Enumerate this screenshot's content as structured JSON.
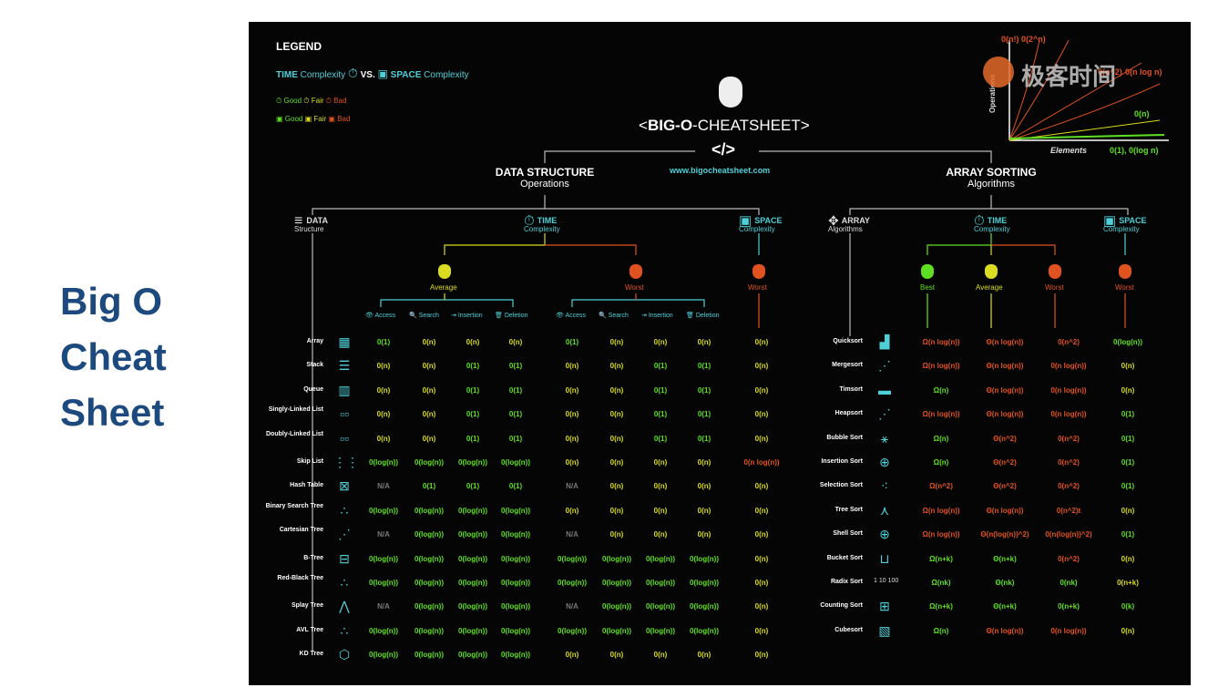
{
  "slide_title": [
    "Big O",
    "Cheat",
    "Sheet"
  ],
  "legend": {
    "title": "LEGEND",
    "time_word": "TIME",
    "complexity_word": "Complexity",
    "vs": "VS.",
    "space_word": "SPACE",
    "good": "Good",
    "fair": "Fair",
    "bad": "Bad"
  },
  "header": {
    "title_prefix": "<",
    "title_bold": "BIG-O",
    "title_rest": "-CHEATSHEET>",
    "code_glyph": "</>",
    "url": "www.bigocheatsheet.com"
  },
  "graph": {
    "labels": [
      "0(n!)",
      "0(2^n)",
      "0(n^2)",
      "0(n log n)",
      "0(n)",
      "0(1), 0(log n)"
    ],
    "x_label": "Elements",
    "y_label": "Operations"
  },
  "watermark": "极客时间",
  "sections": {
    "ds_title": "DATA STRUCTURE",
    "ds_sub": "Operations",
    "sort_title": "ARRAY SORTING",
    "sort_sub": "Algorithms",
    "data_structure": [
      "DATA",
      "Structure"
    ],
    "time_complexity": [
      "TIME",
      "Complexity"
    ],
    "space_complexity": [
      "SPACE",
      "Complexity"
    ],
    "array_algorithms": [
      "ARRAY",
      "Algorithms"
    ],
    "average": "Average",
    "worst": "Worst",
    "best": "Best",
    "ops": [
      "Access",
      "Search",
      "Insertion",
      "Deletion"
    ]
  },
  "ds_rows": [
    {
      "name": "Array",
      "avg": [
        "0(1)",
        "0(n)",
        "0(n)",
        "0(n)"
      ],
      "worst": [
        "0(1)",
        "0(n)",
        "0(n)",
        "0(n)"
      ],
      "space": "0(n)"
    },
    {
      "name": "Stack",
      "avg": [
        "0(n)",
        "0(n)",
        "0(1)",
        "0(1)"
      ],
      "worst": [
        "0(n)",
        "0(n)",
        "0(1)",
        "0(1)"
      ],
      "space": "0(n)"
    },
    {
      "name": "Queue",
      "avg": [
        "0(n)",
        "0(n)",
        "0(1)",
        "0(1)"
      ],
      "worst": [
        "0(n)",
        "0(n)",
        "0(1)",
        "0(1)"
      ],
      "space": "0(n)"
    },
    {
      "name": "Singly-Linked List",
      "avg": [
        "0(n)",
        "0(n)",
        "0(1)",
        "0(1)"
      ],
      "worst": [
        "0(n)",
        "0(n)",
        "0(1)",
        "0(1)"
      ],
      "space": "0(n)"
    },
    {
      "name": "Doubly-Linked List",
      "avg": [
        "0(n)",
        "0(n)",
        "0(1)",
        "0(1)"
      ],
      "worst": [
        "0(n)",
        "0(n)",
        "0(1)",
        "0(1)"
      ],
      "space": "0(n)"
    },
    {
      "name": "Skip List",
      "avg": [
        "0(log(n))",
        "0(log(n))",
        "0(log(n))",
        "0(log(n))"
      ],
      "worst": [
        "0(n)",
        "0(n)",
        "0(n)",
        "0(n)"
      ],
      "space": "0(n log(n))"
    },
    {
      "name": "Hash Table",
      "avg": [
        "N/A",
        "0(1)",
        "0(1)",
        "0(1)"
      ],
      "worst": [
        "N/A",
        "0(n)",
        "0(n)",
        "0(n)"
      ],
      "space": "0(n)"
    },
    {
      "name": "Binary Search Tree",
      "avg": [
        "0(log(n))",
        "0(log(n))",
        "0(log(n))",
        "0(log(n))"
      ],
      "worst": [
        "0(n)",
        "0(n)",
        "0(n)",
        "0(n)"
      ],
      "space": "0(n)"
    },
    {
      "name": "Cartesian Tree",
      "avg": [
        "N/A",
        "0(log(n))",
        "0(log(n))",
        "0(log(n))"
      ],
      "worst": [
        "N/A",
        "0(n)",
        "0(n)",
        "0(n)"
      ],
      "space": "0(n)"
    },
    {
      "name": "B-Tree",
      "avg": [
        "0(log(n))",
        "0(log(n))",
        "0(log(n))",
        "0(log(n))"
      ],
      "worst": [
        "0(log(n))",
        "0(log(n))",
        "0(log(n))",
        "0(log(n))"
      ],
      "space": "0(n)"
    },
    {
      "name": "Red-Black Tree",
      "avg": [
        "0(log(n))",
        "0(log(n))",
        "0(log(n))",
        "0(log(n))"
      ],
      "worst": [
        "0(log(n))",
        "0(log(n))",
        "0(log(n))",
        "0(log(n))"
      ],
      "space": "0(n)"
    },
    {
      "name": "Splay Tree",
      "avg": [
        "N/A",
        "0(log(n))",
        "0(log(n))",
        "0(log(n))"
      ],
      "worst": [
        "N/A",
        "0(log(n))",
        "0(log(n))",
        "0(log(n))"
      ],
      "space": "0(n)"
    },
    {
      "name": "AVL Tree",
      "avg": [
        "0(log(n))",
        "0(log(n))",
        "0(log(n))",
        "0(log(n))"
      ],
      "worst": [
        "0(log(n))",
        "0(log(n))",
        "0(log(n))",
        "0(log(n))"
      ],
      "space": "0(n)"
    },
    {
      "name": "KD Tree",
      "avg": [
        "0(log(n))",
        "0(log(n))",
        "0(log(n))",
        "0(log(n))"
      ],
      "worst": [
        "0(n)",
        "0(n)",
        "0(n)",
        "0(n)"
      ],
      "space": "0(n)"
    }
  ],
  "sort_rows": [
    {
      "name": "Quicksort",
      "best": "Ω(n log(n))",
      "avg": "Θ(n log(n))",
      "worst": "0(n^2)",
      "space": "0(log(n))"
    },
    {
      "name": "Mergesort",
      "best": "Ω(n log(n))",
      "avg": "Θ(n log(n))",
      "worst": "0(n log(n))",
      "space": "0(n)"
    },
    {
      "name": "Timsort",
      "best": "Ω(n)",
      "avg": "Θ(n log(n))",
      "worst": "0(n log(n))",
      "space": "0(n)"
    },
    {
      "name": "Heapsort",
      "best": "Ω(n log(n))",
      "avg": "Θ(n log(n))",
      "worst": "0(n log(n))",
      "space": "0(1)"
    },
    {
      "name": "Bubble Sort",
      "best": "Ω(n)",
      "avg": "Θ(n^2)",
      "worst": "0(n^2)",
      "space": "0(1)"
    },
    {
      "name": "Insertion Sort",
      "best": "Ω(n)",
      "avg": "Θ(n^2)",
      "worst": "0(n^2)",
      "space": "0(1)"
    },
    {
      "name": "Selection Sort",
      "best": "Ω(n^2)",
      "avg": "Θ(n^2)",
      "worst": "0(n^2)",
      "space": "0(1)"
    },
    {
      "name": "Tree Sort",
      "best": "Ω(n log(n))",
      "avg": "Θ(n log(n))",
      "worst": "0(n^2)t",
      "space": "0(n)"
    },
    {
      "name": "Shell Sort",
      "best": "Ω(n log(n))",
      "avg": "Θ(n(log(n))^2)",
      "worst": "0(n(log(n))^2)",
      "space": "0(1)"
    },
    {
      "name": "Bucket Sort",
      "best": "Ω(n+k)",
      "avg": "Θ(n+k)",
      "worst": "0(n^2)",
      "space": "0(n)"
    },
    {
      "name": "Radix Sort",
      "best": "Ω(nk)",
      "avg": "Θ(nk)",
      "worst": "0(nk)",
      "space": "0(n+k)"
    },
    {
      "name": "Counting Sort",
      "best": "Ω(n+k)",
      "avg": "Θ(n+k)",
      "worst": "0(n+k)",
      "space": "0(k)"
    },
    {
      "name": "Cubesort",
      "best": "Ω(n)",
      "avg": "Θ(n log(n))",
      "worst": "0(n log(n))",
      "space": "0(n)"
    }
  ],
  "radix_icon_text": "1 10 100",
  "colors": {
    "good": "#5ee022",
    "fair": "#d9dc20",
    "bad": "#e0521f",
    "accent": "#4fd0d8",
    "slide_title": "#1d4a7e"
  }
}
